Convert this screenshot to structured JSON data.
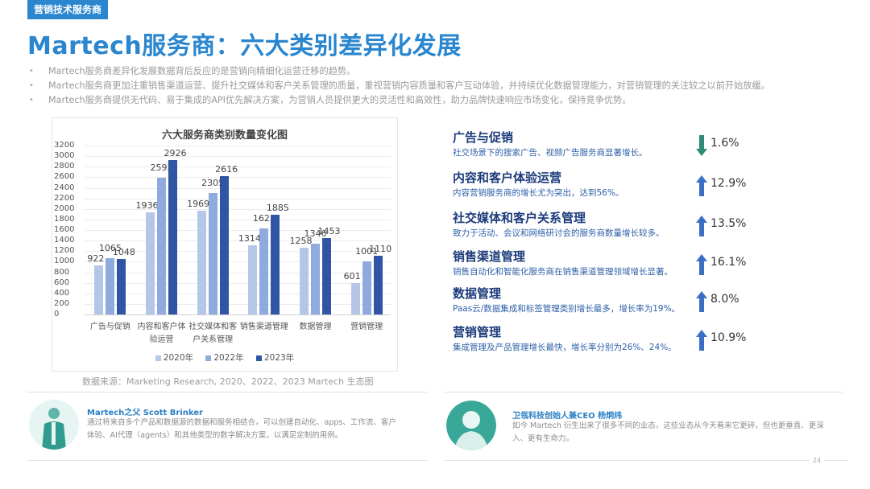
{
  "header": {
    "tag": "营销技术服务商",
    "title": "Martech服务商：六大类别差异化发展"
  },
  "bullets": [
    "Martech服务商差异化发展数据背后反应的是营销向精细化运营迁移的趋势。",
    "Martech服务商更加注重销售渠道运营、提升社交媒体和客户关系管理的质量，重视营销内容质量和客户互动体验，并持续优化数据管理能力，对营销管理的关注较之以前开始放缓。",
    "Martech服务商提供无代码、易于集成的API优先解决方案，为营销人员提供更大的灵活性和高效性，助力品牌快速响应市场变化，保持竞争优势。"
  ],
  "bullet_symbol": "•",
  "colors": {
    "accent": "#2a86cf",
    "series_2020": "#b4c7e7",
    "series_2022": "#8faadc",
    "series_2023": "#2f55a4",
    "arrow_down": "#2e8b7a",
    "arrow_up": "#3a6fc4",
    "category_title": "#1b3b7a",
    "category_desc": "#2d5fa8"
  },
  "chart_data": {
    "type": "bar",
    "title": "六大服务商类别数量变化图",
    "categories": [
      "广告与促销",
      "内容和客户体验运营",
      "社交媒体和客户关系管理",
      "销售渠道管理",
      "数据管理",
      "营销管理"
    ],
    "category_labels_wrapped": [
      [
        "广告与促销"
      ],
      [
        "内容和客户体",
        "验运营"
      ],
      [
        "社交媒体和客",
        "户关系管理"
      ],
      [
        "销售渠道管理"
      ],
      [
        "数据管理"
      ],
      [
        "营销管理"
      ]
    ],
    "series": [
      {
        "name": "2020年",
        "values": [
          922,
          1936,
          1969,
          1314,
          1258,
          601
        ]
      },
      {
        "name": "2022年",
        "values": [
          1065,
          2592,
          2305,
          1623,
          1346,
          1001
        ]
      },
      {
        "name": "2023年",
        "values": [
          1048,
          2926,
          2616,
          1885,
          1453,
          1110
        ]
      }
    ],
    "xlabel": "",
    "ylabel": "",
    "ylim": [
      0,
      3200
    ],
    "yticks": [
      0,
      200,
      400,
      600,
      800,
      1000,
      1200,
      1400,
      1600,
      1800,
      2000,
      2200,
      2400,
      2600,
      2800,
      3000,
      3200
    ],
    "grid": true,
    "legend_position": "bottom",
    "source": "数据来源：Marketing Research, 2020、2022、2023 Martech 生态图"
  },
  "categories": [
    {
      "name": "广告与促销",
      "desc": "社交场景下的搜索广告、视频广告服务商显著增长。",
      "direction": "down",
      "icon": "arrow-down-icon",
      "pct": "1.6%"
    },
    {
      "name": "内容和客户体验运营",
      "desc": "内容营销服务商的增长尤为突出，达到56%。",
      "direction": "up",
      "icon": "arrow-up-icon",
      "pct": "12.9%"
    },
    {
      "name": "社交媒体和客户关系管理",
      "desc": "致力于活动、会议和网络研讨会的服务商数量增长较多。",
      "direction": "up",
      "icon": "arrow-up-icon",
      "pct": "13.5%"
    },
    {
      "name": "销售渠道管理",
      "desc": "销售自动化和智能化服务商在销售渠道管理领域增长显著。",
      "direction": "up",
      "icon": "arrow-up-icon",
      "pct": "16.1%"
    },
    {
      "name": "数据管理",
      "desc": "Paas云/数据集成和标签管理类别增长最多，增长率为19%。",
      "direction": "up",
      "icon": "arrow-up-icon",
      "pct": "8.0%"
    },
    {
      "name": "营销管理",
      "desc": "集成管理及产品管理增长最快，增长率分别为26%、24%。",
      "direction": "up",
      "icon": "arrow-up-icon",
      "pct": "10.9%"
    }
  ],
  "quotes": [
    {
      "name": "Martech之父  Scott Brinker",
      "text": "通过将来自多个产品和数据源的数据和服务相结合，可以创建自动化、apps、工作流、客户体验、AI代理（agents）和其他类型的数字解决方案，以满足定制的用例。",
      "avatar_icon": "person-avatar-icon"
    },
    {
      "name": "卫瓴科技创始人兼CEO 杨炯纬",
      "text": "如今 Martech 衍生出来了很多不同的业态，这些业态从今天看来它更碎，但也更垂直、更深入、更有生命力。",
      "avatar_icon": "person-avatar-icon"
    }
  ],
  "page_number": "24"
}
